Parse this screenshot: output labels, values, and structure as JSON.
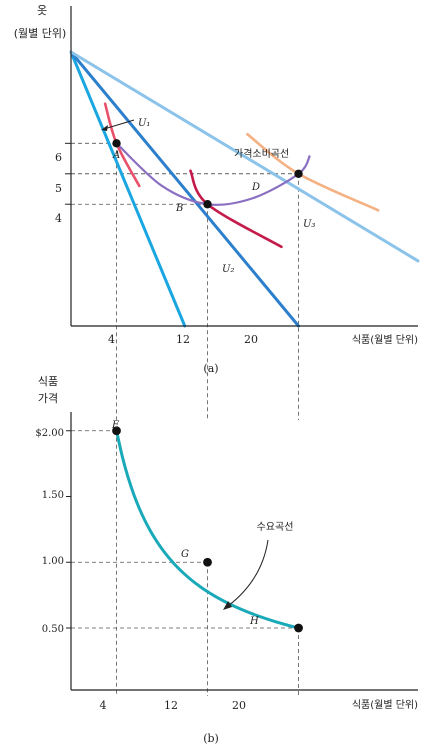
{
  "chart_data": [
    {
      "type": "line",
      "panel_label": "(a)",
      "ylabel_lines": [
        "옷",
        "(월별 단위)"
      ],
      "xlabel": "식품(월별 단위)",
      "xlim": [
        0,
        30.5
      ],
      "ylim": [
        0,
        9
      ],
      "x_ticks": [
        "4",
        "12",
        "20"
      ],
      "y_ticks": [
        "4",
        "5",
        "6"
      ],
      "budget_lines": [
        {
          "name": "",
          "x_intercept": 10,
          "y_intercept": 9
        },
        {
          "name": "",
          "x_intercept": 20,
          "y_intercept": 9
        },
        {
          "name": "",
          "x_intercept": 40,
          "y_intercept": 9
        }
      ],
      "indifference_curves": [
        {
          "name": "U₁",
          "points": [
            [
              3,
              7.3
            ],
            [
              4,
              6
            ],
            [
              6,
              4.6
            ]
          ]
        },
        {
          "name": "U₂",
          "points": [
            [
              10.5,
              5.1
            ],
            [
              12,
              4
            ],
            [
              18.5,
              2.6
            ]
          ]
        },
        {
          "name": "U₃",
          "points": [
            [
              15.5,
              6.3
            ],
            [
              20,
              5
            ],
            [
              27,
              3.8
            ]
          ]
        }
      ],
      "price_consumption_curve": {
        "label": "가격소비곡선",
        "points": [
          [
            4,
            6
          ],
          [
            8,
            4.6
          ],
          [
            12,
            4
          ],
          [
            16,
            4.2
          ],
          [
            20,
            5
          ],
          [
            21,
            5.6
          ]
        ]
      },
      "points": [
        {
          "label": "A",
          "x": 4,
          "y": 6
        },
        {
          "label": "B",
          "x": 12,
          "y": 4
        },
        {
          "label": "D",
          "x": 20,
          "y": 5
        }
      ],
      "colors": {
        "budget_steep": "#1aa6e0",
        "budget_mid": "#2b7fcc",
        "budget_flat": "#8cc3ea",
        "u1": "#e8506b",
        "u2": "#c51b4b",
        "u3": "#f4b183",
        "pcc": "#8a6fc2"
      }
    },
    {
      "type": "line",
      "panel_label": "(b)",
      "ylabel_lines": [
        "식품",
        "가격"
      ],
      "xlabel": "식품(월별 단위)",
      "xlim": [
        0,
        30.5
      ],
      "ylim": [
        0,
        2.25
      ],
      "x_ticks": [
        "4",
        "12",
        "20"
      ],
      "y_ticks": [
        {
          "value": 2.0,
          "label": "$2.00"
        },
        {
          "value": 1.5,
          "label": "1.50"
        },
        {
          "value": 1.0,
          "label": "1.00"
        },
        {
          "value": 0.5,
          "label": "0.50"
        }
      ],
      "demand_curve": {
        "label": "수요곡선",
        "points": [
          [
            4,
            2.0
          ],
          [
            12,
            1.0
          ],
          [
            20,
            0.5
          ]
        ]
      },
      "points": [
        {
          "label": "E",
          "x": 4,
          "y": 2.0
        },
        {
          "label": "G",
          "x": 12,
          "y": 1.0
        },
        {
          "label": "H",
          "x": 20,
          "y": 0.5
        }
      ],
      "colors": {
        "demand": "#19a9b8"
      }
    }
  ]
}
